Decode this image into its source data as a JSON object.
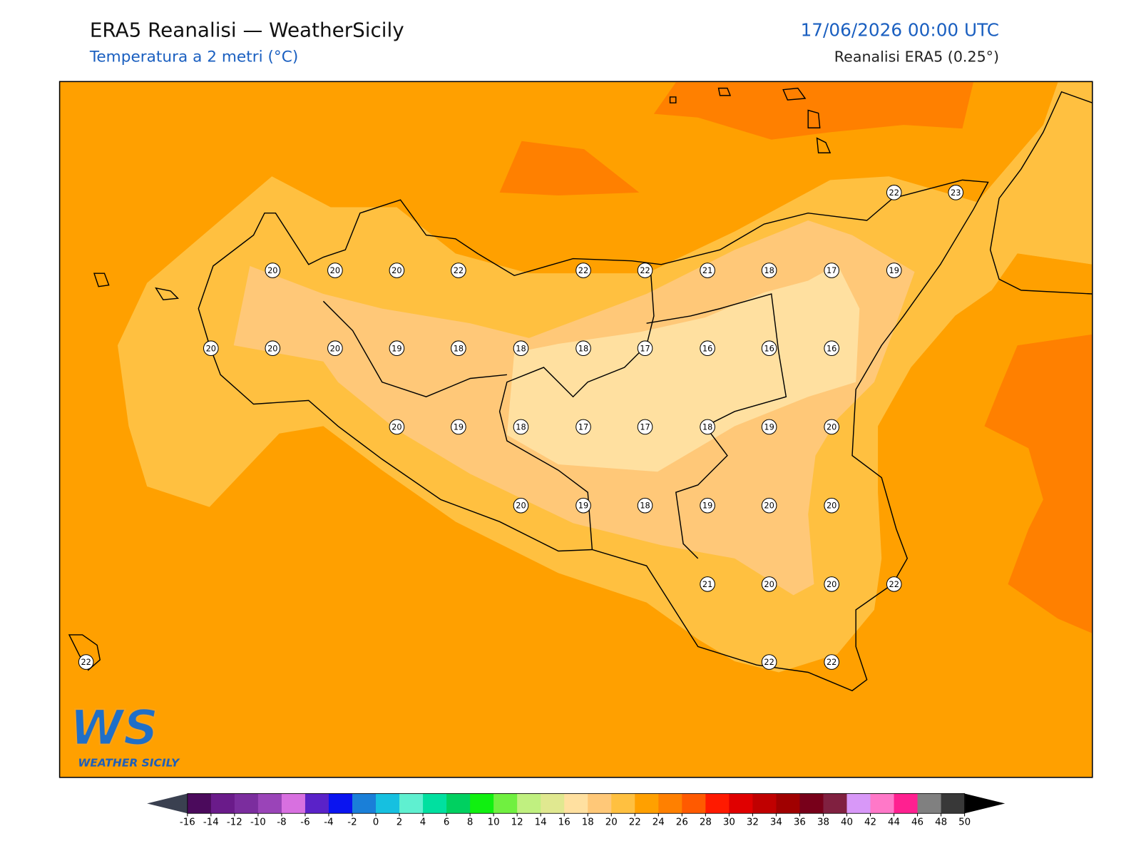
{
  "header": {
    "title": "ERA5 Reanalisi — WeatherSicily",
    "subtitle": "Temperatura a 2 metri (°C)",
    "date": "17/06/2026 00:00 UTC",
    "source": "Reanalisi ERA5 (0.25°)"
  },
  "stations": [
    22,
    23,
    20,
    20,
    20,
    22,
    22,
    22,
    21,
    18,
    17,
    19,
    20,
    20,
    20,
    19,
    18,
    18,
    18,
    17,
    16,
    16,
    16,
    20,
    19,
    18,
    17,
    17,
    18,
    19,
    20,
    20,
    19,
    18,
    19,
    20,
    20,
    21,
    20,
    20,
    22,
    22,
    22,
    22
  ],
  "colorbar": {
    "ticks": [
      -16,
      -14,
      -12,
      -10,
      -8,
      -6,
      -4,
      -2,
      0,
      2,
      4,
      6,
      8,
      10,
      12,
      14,
      16,
      18,
      20,
      22,
      24,
      26,
      28,
      30,
      32,
      34,
      36,
      38,
      40,
      42,
      44,
      46,
      48,
      50
    ],
    "colors": [
      "#4b0a5c",
      "#6a1b8a",
      "#7b2d9e",
      "#9a44b8",
      "#d870e0",
      "#5a22c8",
      "#0a14f0",
      "#1a7fd8",
      "#16c0e0",
      "#5ff0d0",
      "#00e0a0",
      "#00d060",
      "#10f010",
      "#70f040",
      "#c0f080",
      "#e0e890",
      "#ffe0a0",
      "#ffc878",
      "#ffc040",
      "#ffa000",
      "#ff8000",
      "#ff5a00",
      "#ff1a00",
      "#e00000",
      "#c00000",
      "#a00000",
      "#78001a",
      "#802040",
      "#d898f8",
      "#ff78c8",
      "#ff2090",
      "#808080",
      "#383838"
    ],
    "under_color": "#3a4050",
    "over_color": "#000000"
  },
  "logo": {
    "mark": "WS",
    "text": "WEATHER SICILY"
  }
}
